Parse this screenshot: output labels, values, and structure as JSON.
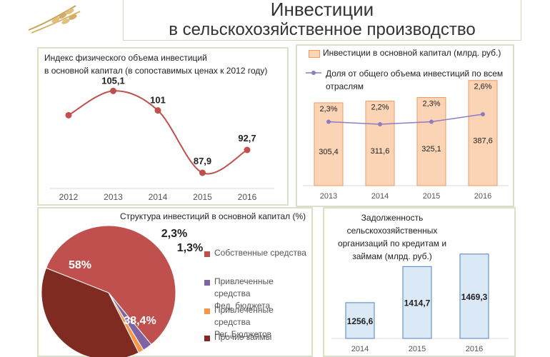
{
  "page_title": {
    "line1": "Инвестиции",
    "line2": "в сельскохозяйственное производство"
  },
  "colors": {
    "line": "#c0504d",
    "bar_fill": "#fbd3b5",
    "bar_stroke": "#f29b5b",
    "share_line": "#8e7cc3",
    "blue_bar_fill": "#dbe8f6",
    "blue_bar_stroke": "#4f81bd",
    "pie_own": "#c0504d",
    "pie_fed": "#8064a2",
    "pie_reg": "#f79646",
    "pie_other": "#7f2b22"
  },
  "chart_data": [
    {
      "type": "line",
      "title_line1": "Индекс физического объема инвестиций",
      "title_line2": "в основной капитал (в сопоставимых ценах к 2012 году)",
      "x": [
        "2012",
        "2013",
        "2014",
        "2015",
        "2016"
      ],
      "values": [
        100,
        105.1,
        101,
        87.9,
        92.7
      ],
      "labels": [
        "",
        "105,1",
        "101",
        "87,9",
        "92,7"
      ],
      "ylim": [
        84,
        108
      ]
    },
    {
      "type": "bar",
      "legend_bar": "Инвестиции в основной капитал (млрд. руб.)",
      "legend_line_1": "Доля от общего объема инвестиций по всем",
      "legend_line_2": "отраслям",
      "categories": [
        "2013",
        "2014",
        "2015",
        "2016"
      ],
      "values": [
        305.4,
        311.6,
        325.1,
        387.6
      ],
      "value_labels": [
        "305,4",
        "311,6",
        "325,1",
        "387,6"
      ],
      "share": [
        2.3,
        2.2,
        2.3,
        2.6
      ],
      "share_labels": [
        "2,3%",
        "2,2%",
        "2,3%",
        "2,6%"
      ],
      "ylim": [
        0,
        400
      ]
    },
    {
      "type": "pie",
      "title": "Структура инвестиций в основной капитал (%)",
      "slices": [
        {
          "name": "Собственные средства",
          "value": 58,
          "label": "58%"
        },
        {
          "name_line1": "Привлеченные средства",
          "name_line2": "Фед. бюджета",
          "value": 2.3,
          "label": "2,3%"
        },
        {
          "name_line1": "Привлеченные средства",
          "name_line2": "Рег. Бюджетов",
          "value": 1.3,
          "label": "1,3%"
        },
        {
          "name": "Прочие займы",
          "value": 38.4,
          "label": "38,4%"
        }
      ]
    },
    {
      "type": "bar",
      "title_line1": "Задолженность",
      "title_line2": "сельскохозяйственных",
      "title_line3": "организаций по кредитам и",
      "title_line4": "займам (млрд. руб.)",
      "categories": [
        "2014",
        "2015",
        "2016"
      ],
      "values": [
        1256.6,
        1414.7,
        1469.3
      ],
      "value_labels": [
        "1256,6",
        "1414,7",
        "1469,3"
      ],
      "ylim": [
        1100,
        1500
      ]
    }
  ]
}
